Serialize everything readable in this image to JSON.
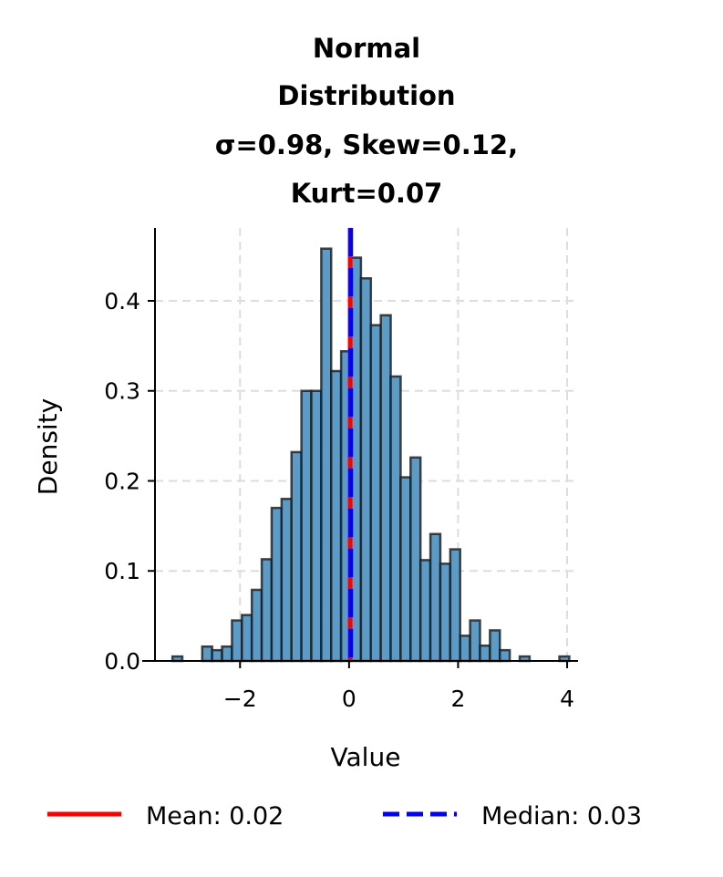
{
  "chart_data": {
    "type": "bar",
    "subtype": "histogram",
    "title_lines": [
      "Normal",
      "Distribution",
      "σ=0.98, Skew=0.12,",
      "Kurt=0.07"
    ],
    "xlabel": "Value",
    "ylabel": "Density",
    "xlim": [
      -3.56,
      4.2
    ],
    "ylim": [
      0,
      0.481
    ],
    "xticks": [
      -2,
      0,
      2,
      4
    ],
    "xtick_labels": [
      "−2",
      "0",
      "2",
      "4"
    ],
    "yticks": [
      0.0,
      0.1,
      0.2,
      0.3,
      0.4
    ],
    "ytick_labels": [
      "0.0",
      "0.1",
      "0.2",
      "0.3",
      "0.4"
    ],
    "grid": true,
    "bin_start": -3.24,
    "bin_width": 0.182,
    "densities": [
      0.005,
      0,
      0,
      0.016,
      0.012,
      0.016,
      0.045,
      0.051,
      0.079,
      0.113,
      0.17,
      0.18,
      0.232,
      0.3,
      0.3,
      0.458,
      0.322,
      0.344,
      0.448,
      0.425,
      0.373,
      0.384,
      0.316,
      0.204,
      0.226,
      0.112,
      0.141,
      0.108,
      0.124,
      0.028,
      0.045,
      0.017,
      0.034,
      0.012,
      0,
      0.005,
      0,
      0,
      0,
      0.005
    ],
    "bar_color": "#5b9bc8",
    "edge_color": "#1a1a1a",
    "mean": 0.02,
    "median": 0.03,
    "mean_color": "#ff0000",
    "median_color": "#0000ff",
    "legend": {
      "placement": "bottom",
      "entries": [
        {
          "label": "Mean: 0.02",
          "style": "solid",
          "color": "#ff0000"
        },
        {
          "label": "Median: 0.03",
          "style": "dashed",
          "color": "#0000ff"
        }
      ]
    }
  }
}
